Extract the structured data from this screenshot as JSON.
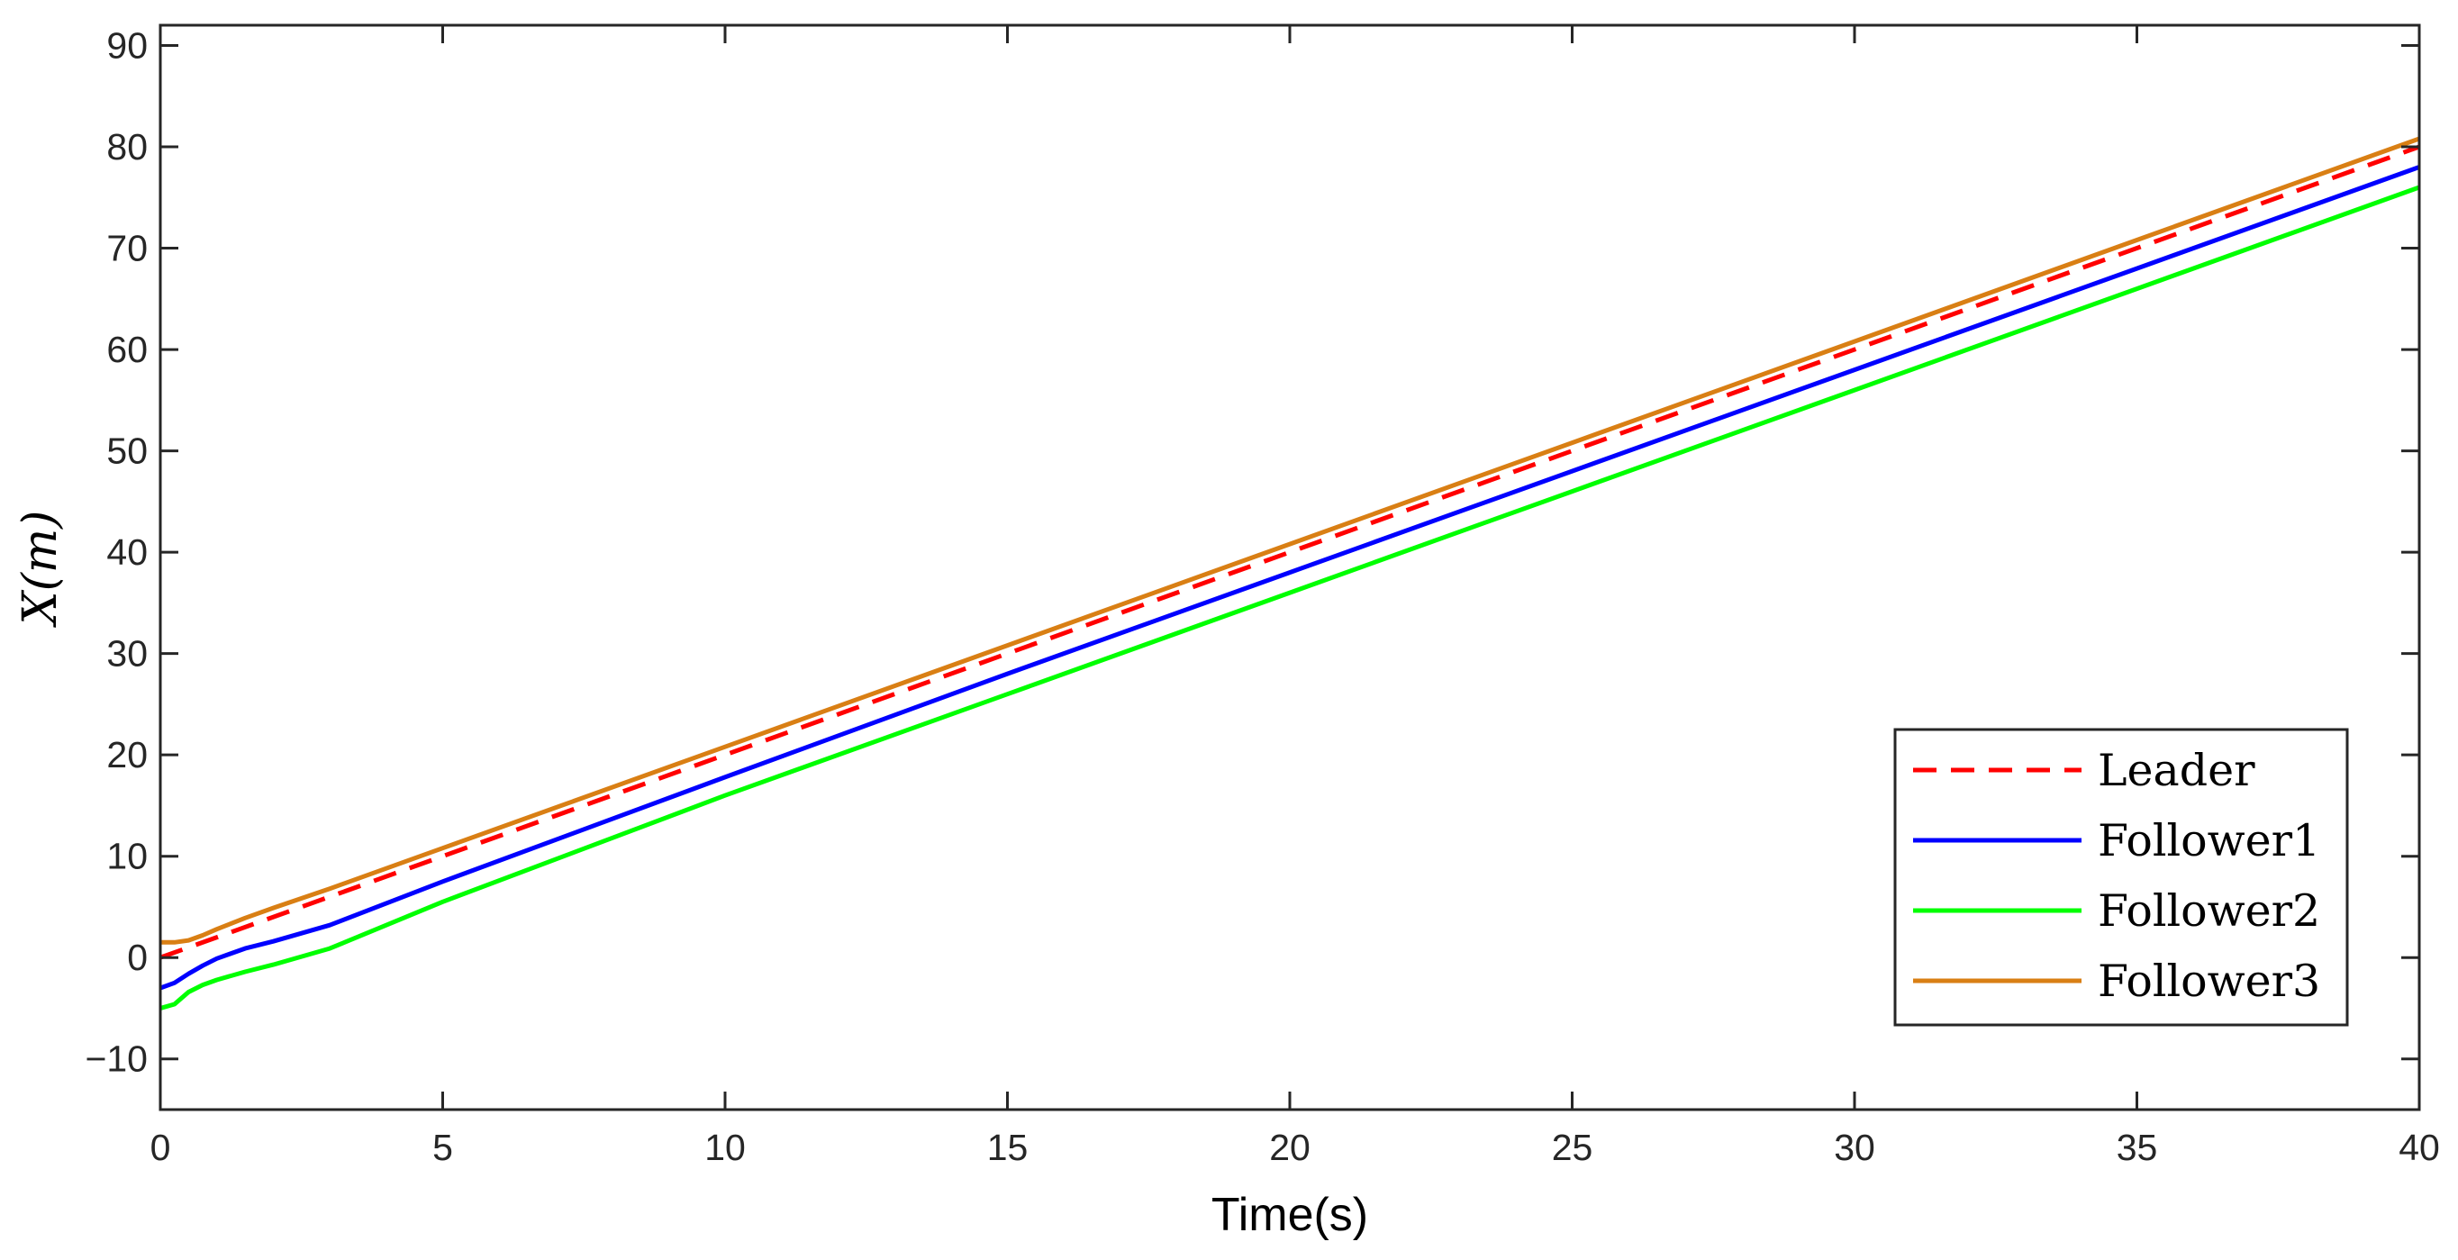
{
  "chart_data": {
    "type": "line",
    "title": "",
    "xlabel": "Time(s)",
    "ylabel": "X(m)",
    "xlim": [
      0,
      40
    ],
    "ylim": [
      -15,
      92
    ],
    "xticks": [
      0,
      5,
      10,
      15,
      20,
      25,
      30,
      35,
      40
    ],
    "xtick_labels": [
      "0",
      "5",
      "10",
      "15",
      "20",
      "25",
      "30",
      "35",
      "40"
    ],
    "yticks": [
      -10,
      0,
      10,
      20,
      30,
      40,
      50,
      60,
      70,
      80,
      90
    ],
    "ytick_labels": [
      "−10",
      "0",
      "10",
      "20",
      "30",
      "40",
      "50",
      "60",
      "70",
      "80",
      "90"
    ],
    "grid": false,
    "legend_position": "bottom-right",
    "series": [
      {
        "name": "Leader",
        "color": "#ff0000",
        "style": "dashed",
        "x": [
          0,
          40
        ],
        "y": [
          0,
          80
        ]
      },
      {
        "name": "Follower1",
        "color": "#0000ff",
        "style": "solid",
        "x": [
          0,
          0.25,
          0.5,
          0.75,
          1.0,
          1.5,
          2.0,
          3.0,
          5,
          10,
          15,
          20,
          25,
          30,
          35,
          40
        ],
        "y": [
          -3.0,
          -2.5,
          -1.6,
          -0.8,
          -0.1,
          0.9,
          1.6,
          3.2,
          7.5,
          17.8,
          28.0,
          38.0,
          48.0,
          58.0,
          68.0,
          78.0
        ]
      },
      {
        "name": "Follower2",
        "color": "#00ff00",
        "style": "solid",
        "x": [
          0,
          0.25,
          0.5,
          0.75,
          1.0,
          1.5,
          2.0,
          3.0,
          5,
          10,
          15,
          20,
          25,
          30,
          35,
          40
        ],
        "y": [
          -5.0,
          -4.6,
          -3.4,
          -2.7,
          -2.2,
          -1.4,
          -0.7,
          0.9,
          5.5,
          16.0,
          26.0,
          36.0,
          46.0,
          56.0,
          66.0,
          76.0
        ]
      },
      {
        "name": "Follower3",
        "color": "#d97f14",
        "style": "solid",
        "x": [
          0,
          0.25,
          0.5,
          0.75,
          1.0,
          1.5,
          2.0,
          3.0,
          5,
          10,
          15,
          20,
          25,
          30,
          35,
          40
        ],
        "y": [
          1.5,
          1.5,
          1.7,
          2.2,
          2.8,
          3.9,
          4.9,
          6.8,
          10.8,
          20.8,
          30.8,
          40.8,
          50.8,
          60.8,
          70.8,
          80.8
        ]
      }
    ]
  }
}
